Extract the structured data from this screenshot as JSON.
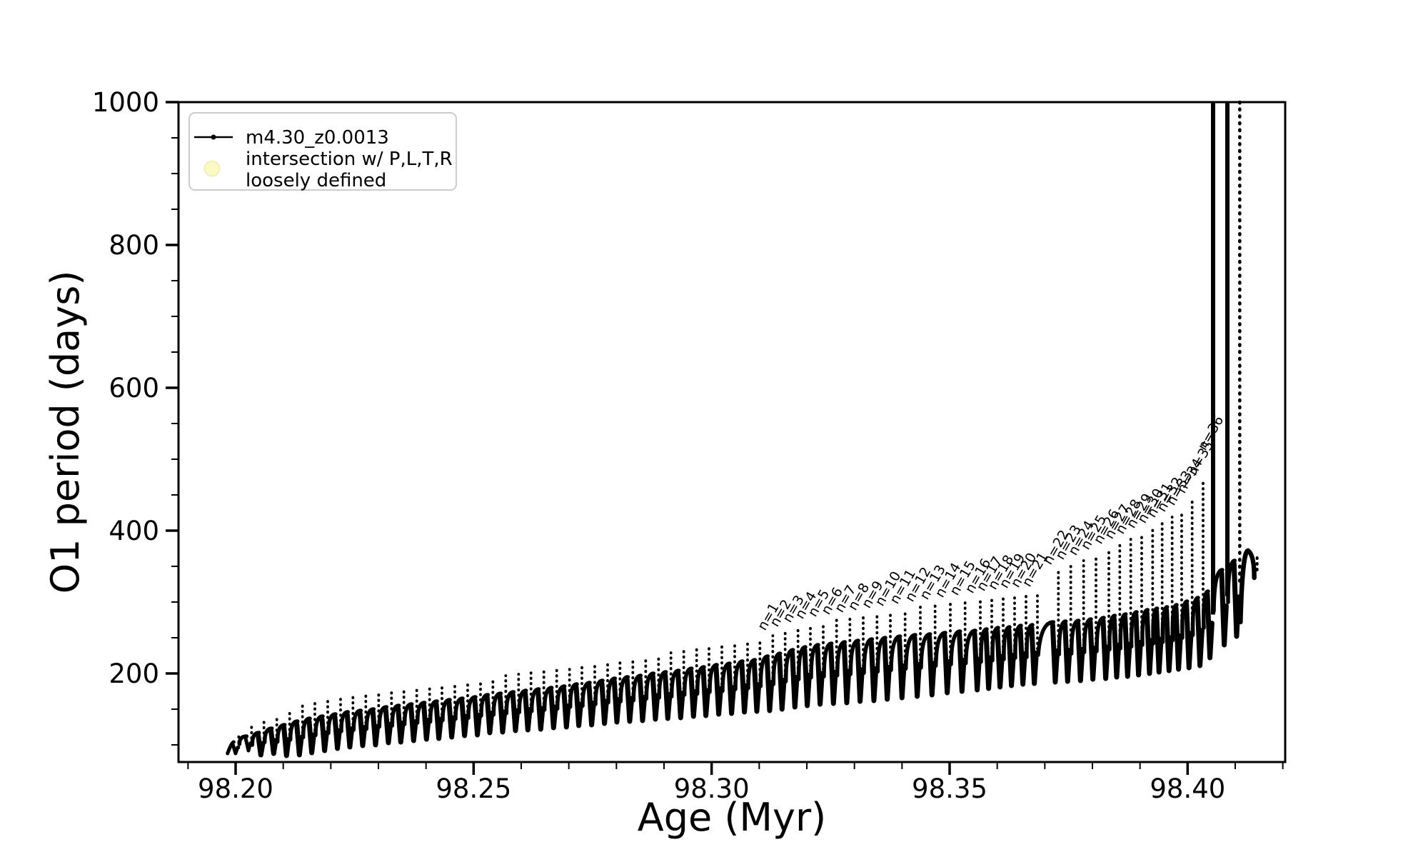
{
  "figure": {
    "background": "#ffffff",
    "axis_color": "#000000",
    "line_color": "#000000"
  },
  "chart_data": {
    "type": "line",
    "title": "",
    "xlabel": "Age (Myr)",
    "ylabel": "O1 period (days)",
    "xlim": [
      98.188,
      98.4205
    ],
    "ylim": [
      76,
      1000
    ],
    "grid": false,
    "legend_position": "upper left",
    "xticks": {
      "major": [
        98.2,
        98.25,
        98.3,
        98.35,
        98.4
      ],
      "labels": [
        "98.20",
        "98.25",
        "98.30",
        "98.35",
        "98.40"
      ],
      "minor_start": 98.19,
      "minor_end": 98.42,
      "minor_step": 0.01
    },
    "yticks": {
      "major": [
        200,
        400,
        600,
        800,
        1000
      ],
      "labels": [
        "200",
        "400",
        "600",
        "800",
        "1000"
      ],
      "minor_start": 100,
      "minor_end": 950,
      "minor_step": 50
    },
    "legend": {
      "entries": [
        {
          "label": "m4.30_z0.0013",
          "type": "line-with-dot",
          "color": "#000000"
        },
        {
          "label_line1": "intersection w/ P,L,T,R",
          "label_line2": "loosely defined",
          "type": "circle-marker",
          "color": "#fbf9c4",
          "edge_color": "#efecac"
        }
      ]
    },
    "series_name": "m4.30_z0.0013",
    "start_point": [
      98.1983,
      88
    ],
    "cycles_format": "[age_myr, arc_crest_days, dip_min_days, needle_tip_days] ; tip 1100 = spike clipped above 1000",
    "cycles": [
      [
        98.1999,
        104,
        88,
        112
      ],
      [
        98.2026,
        112,
        92,
        126
      ],
      [
        98.2052,
        117,
        86,
        134
      ],
      [
        98.2079,
        123,
        88,
        142
      ],
      [
        98.2106,
        128,
        85,
        149
      ],
      [
        98.2133,
        133,
        86,
        155
      ],
      [
        98.2159,
        137,
        89,
        159
      ],
      [
        98.2186,
        140,
        92,
        162
      ],
      [
        98.2213,
        143,
        95,
        165
      ],
      [
        98.2239,
        146,
        97,
        169
      ],
      [
        98.2266,
        148,
        99,
        171
      ],
      [
        98.2293,
        150,
        100,
        173
      ],
      [
        98.232,
        153,
        103,
        176
      ],
      [
        98.2346,
        155,
        104,
        179
      ],
      [
        98.2373,
        157,
        106,
        181
      ],
      [
        98.24,
        159,
        108,
        183
      ],
      [
        98.2426,
        161,
        109,
        185
      ],
      [
        98.2453,
        163,
        111,
        188
      ],
      [
        98.248,
        165,
        113,
        190
      ],
      [
        98.2507,
        167,
        114,
        192
      ],
      [
        98.2533,
        170,
        117,
        194
      ],
      [
        98.256,
        172,
        118,
        197
      ],
      [
        98.2587,
        174,
        120,
        199
      ],
      [
        98.2613,
        176,
        121,
        201
      ],
      [
        98.264,
        178,
        122,
        204
      ],
      [
        98.2667,
        180,
        124,
        206
      ],
      [
        98.2694,
        182,
        125,
        208
      ],
      [
        98.272,
        185,
        127,
        211
      ],
      [
        98.2747,
        187,
        128,
        214
      ],
      [
        98.2774,
        190,
        130,
        216
      ],
      [
        98.28,
        193,
        132,
        219
      ],
      [
        98.2827,
        195,
        133,
        221
      ],
      [
        98.2854,
        197,
        134,
        224
      ],
      [
        98.2881,
        200,
        136,
        227
      ],
      [
        98.2907,
        202,
        137,
        229
      ],
      [
        98.2934,
        204,
        138,
        232
      ],
      [
        98.2961,
        207,
        140,
        235
      ],
      [
        98.2987,
        209,
        141,
        237
      ],
      [
        98.3014,
        212,
        143,
        240
      ],
      [
        98.3041,
        214,
        144,
        242
      ],
      [
        98.3068,
        217,
        146,
        245
      ],
      [
        98.3094,
        219,
        147,
        247
      ],
      [
        98.3121,
        224,
        148,
        253
      ],
      [
        98.3147,
        228,
        150,
        258
      ],
      [
        98.3174,
        233,
        153,
        264
      ],
      [
        98.32,
        237,
        155,
        269
      ],
      [
        98.3227,
        240,
        157,
        272
      ],
      [
        98.3255,
        242,
        158,
        275
      ],
      [
        98.3283,
        244,
        159,
        278
      ],
      [
        98.3311,
        246,
        161,
        281
      ],
      [
        98.334,
        248,
        162,
        284
      ],
      [
        98.3368,
        250,
        164,
        287
      ],
      [
        98.3399,
        252,
        166,
        290
      ],
      [
        98.3431,
        254,
        168,
        293
      ],
      [
        98.3462,
        255,
        170,
        296
      ],
      [
        98.3494,
        257,
        173,
        299
      ],
      [
        98.3525,
        259,
        175,
        302
      ],
      [
        98.3557,
        260,
        177,
        305
      ],
      [
        98.3581,
        262,
        179,
        308
      ],
      [
        98.3605,
        264,
        181,
        310
      ],
      [
        98.3629,
        265,
        183,
        312
      ],
      [
        98.3653,
        267,
        185,
        313
      ],
      [
        98.3677,
        268,
        186,
        314
      ],
      [
        98.3721,
        272,
        188,
        345
      ],
      [
        98.3747,
        273,
        189,
        352
      ],
      [
        98.3774,
        274,
        190,
        358
      ],
      [
        98.38,
        276,
        192,
        366
      ],
      [
        98.3827,
        278,
        193,
        374
      ],
      [
        98.385,
        281,
        195,
        381
      ],
      [
        98.3873,
        283,
        196,
        388
      ],
      [
        98.3896,
        286,
        198,
        396
      ],
      [
        98.3919,
        289,
        200,
        403
      ],
      [
        98.3939,
        291,
        202,
        411
      ],
      [
        98.396,
        293,
        204,
        419
      ],
      [
        98.398,
        296,
        206,
        428
      ],
      [
        98.4002,
        301,
        208,
        445
      ],
      [
        98.4025,
        306,
        211,
        470
      ],
      [
        98.4046,
        315,
        222,
        1100
      ],
      [
        98.4076,
        345,
        240,
        1100
      ],
      [
        98.4102,
        358,
        252,
        1100
      ]
    ],
    "n_labels": {
      "first_cycle_index": 42,
      "rotation_deg": -60,
      "texts": [
        "n=1",
        "n=2",
        "n=3",
        "n=4",
        "n=5",
        "n=6",
        "n=7",
        "n=8",
        "n=9",
        "n=10",
        "n=11",
        "n=12",
        "n=13",
        "n=14",
        "n=15",
        "n=16",
        "n=17",
        "n=18",
        "n=19",
        "n=20",
        "n=21",
        "n=22",
        "n=23",
        "n=24",
        "n=25",
        "n=26",
        "n=27",
        "n=28",
        "n=29",
        "n=30",
        "n=31",
        "n=32",
        "n=33",
        "n=34",
        "n=35",
        "n=36"
      ],
      "n36_anchor_value": 505
    },
    "end_tail": {
      "x_crest": 98.4127,
      "crest": 372,
      "x_end": 98.414,
      "y_end": 334
    }
  }
}
